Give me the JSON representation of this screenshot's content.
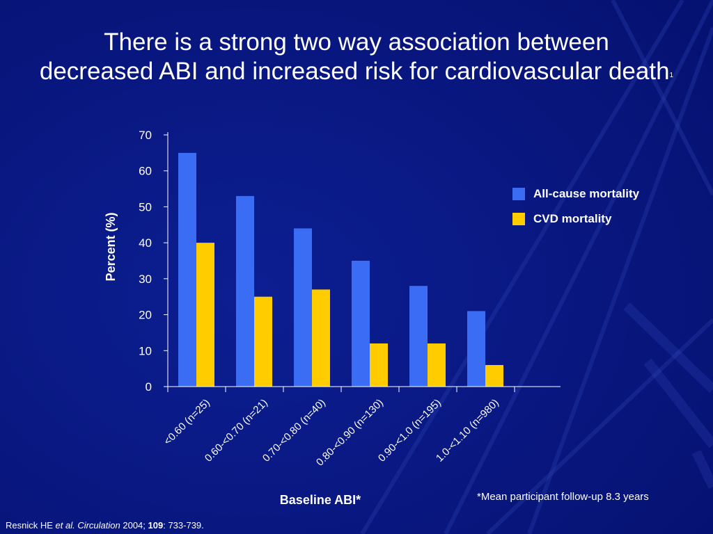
{
  "slide": {
    "title_line1": "There is a strong two way association between",
    "title_line2": "decreased ABI and increased risk for cardiovascular death",
    "title_superscript": "1",
    "footnote": "*Mean participant follow-up 8.3 years",
    "citation": {
      "author": "Resnick HE ",
      "etal": "et al.",
      "journal": " Circulation",
      "year": " 2004; ",
      "volume": "109",
      "pages": ": 733-739."
    }
  },
  "colors": {
    "background": "#0a1a86",
    "all_cause": "#3a6cf4",
    "cvd": "#ffcc00",
    "axis": "#ffffff"
  },
  "chart_data": {
    "type": "bar",
    "categories": [
      "<0.60 (n=25)",
      "0.60-<0.70 (n=21)",
      "0.70-<0.80 (n=40)",
      "0.80-<0.90 (n=130)",
      "0.90-<1.0 (n=195)",
      "1.0-<1.10 (n=980)"
    ],
    "series": [
      {
        "name": "All-cause mortality",
        "values": [
          65,
          53,
          44,
          35,
          28,
          21
        ]
      },
      {
        "name": "CVD mortality",
        "values": [
          40,
          25,
          27,
          12,
          12,
          6
        ]
      }
    ],
    "xlabel": "Baseline ABI*",
    "ylabel": "Percent (%)",
    "ylim": [
      0,
      70
    ],
    "yticks": [
      0,
      10,
      20,
      30,
      40,
      50,
      60,
      70
    ],
    "grid": false,
    "legend_position": "right"
  }
}
